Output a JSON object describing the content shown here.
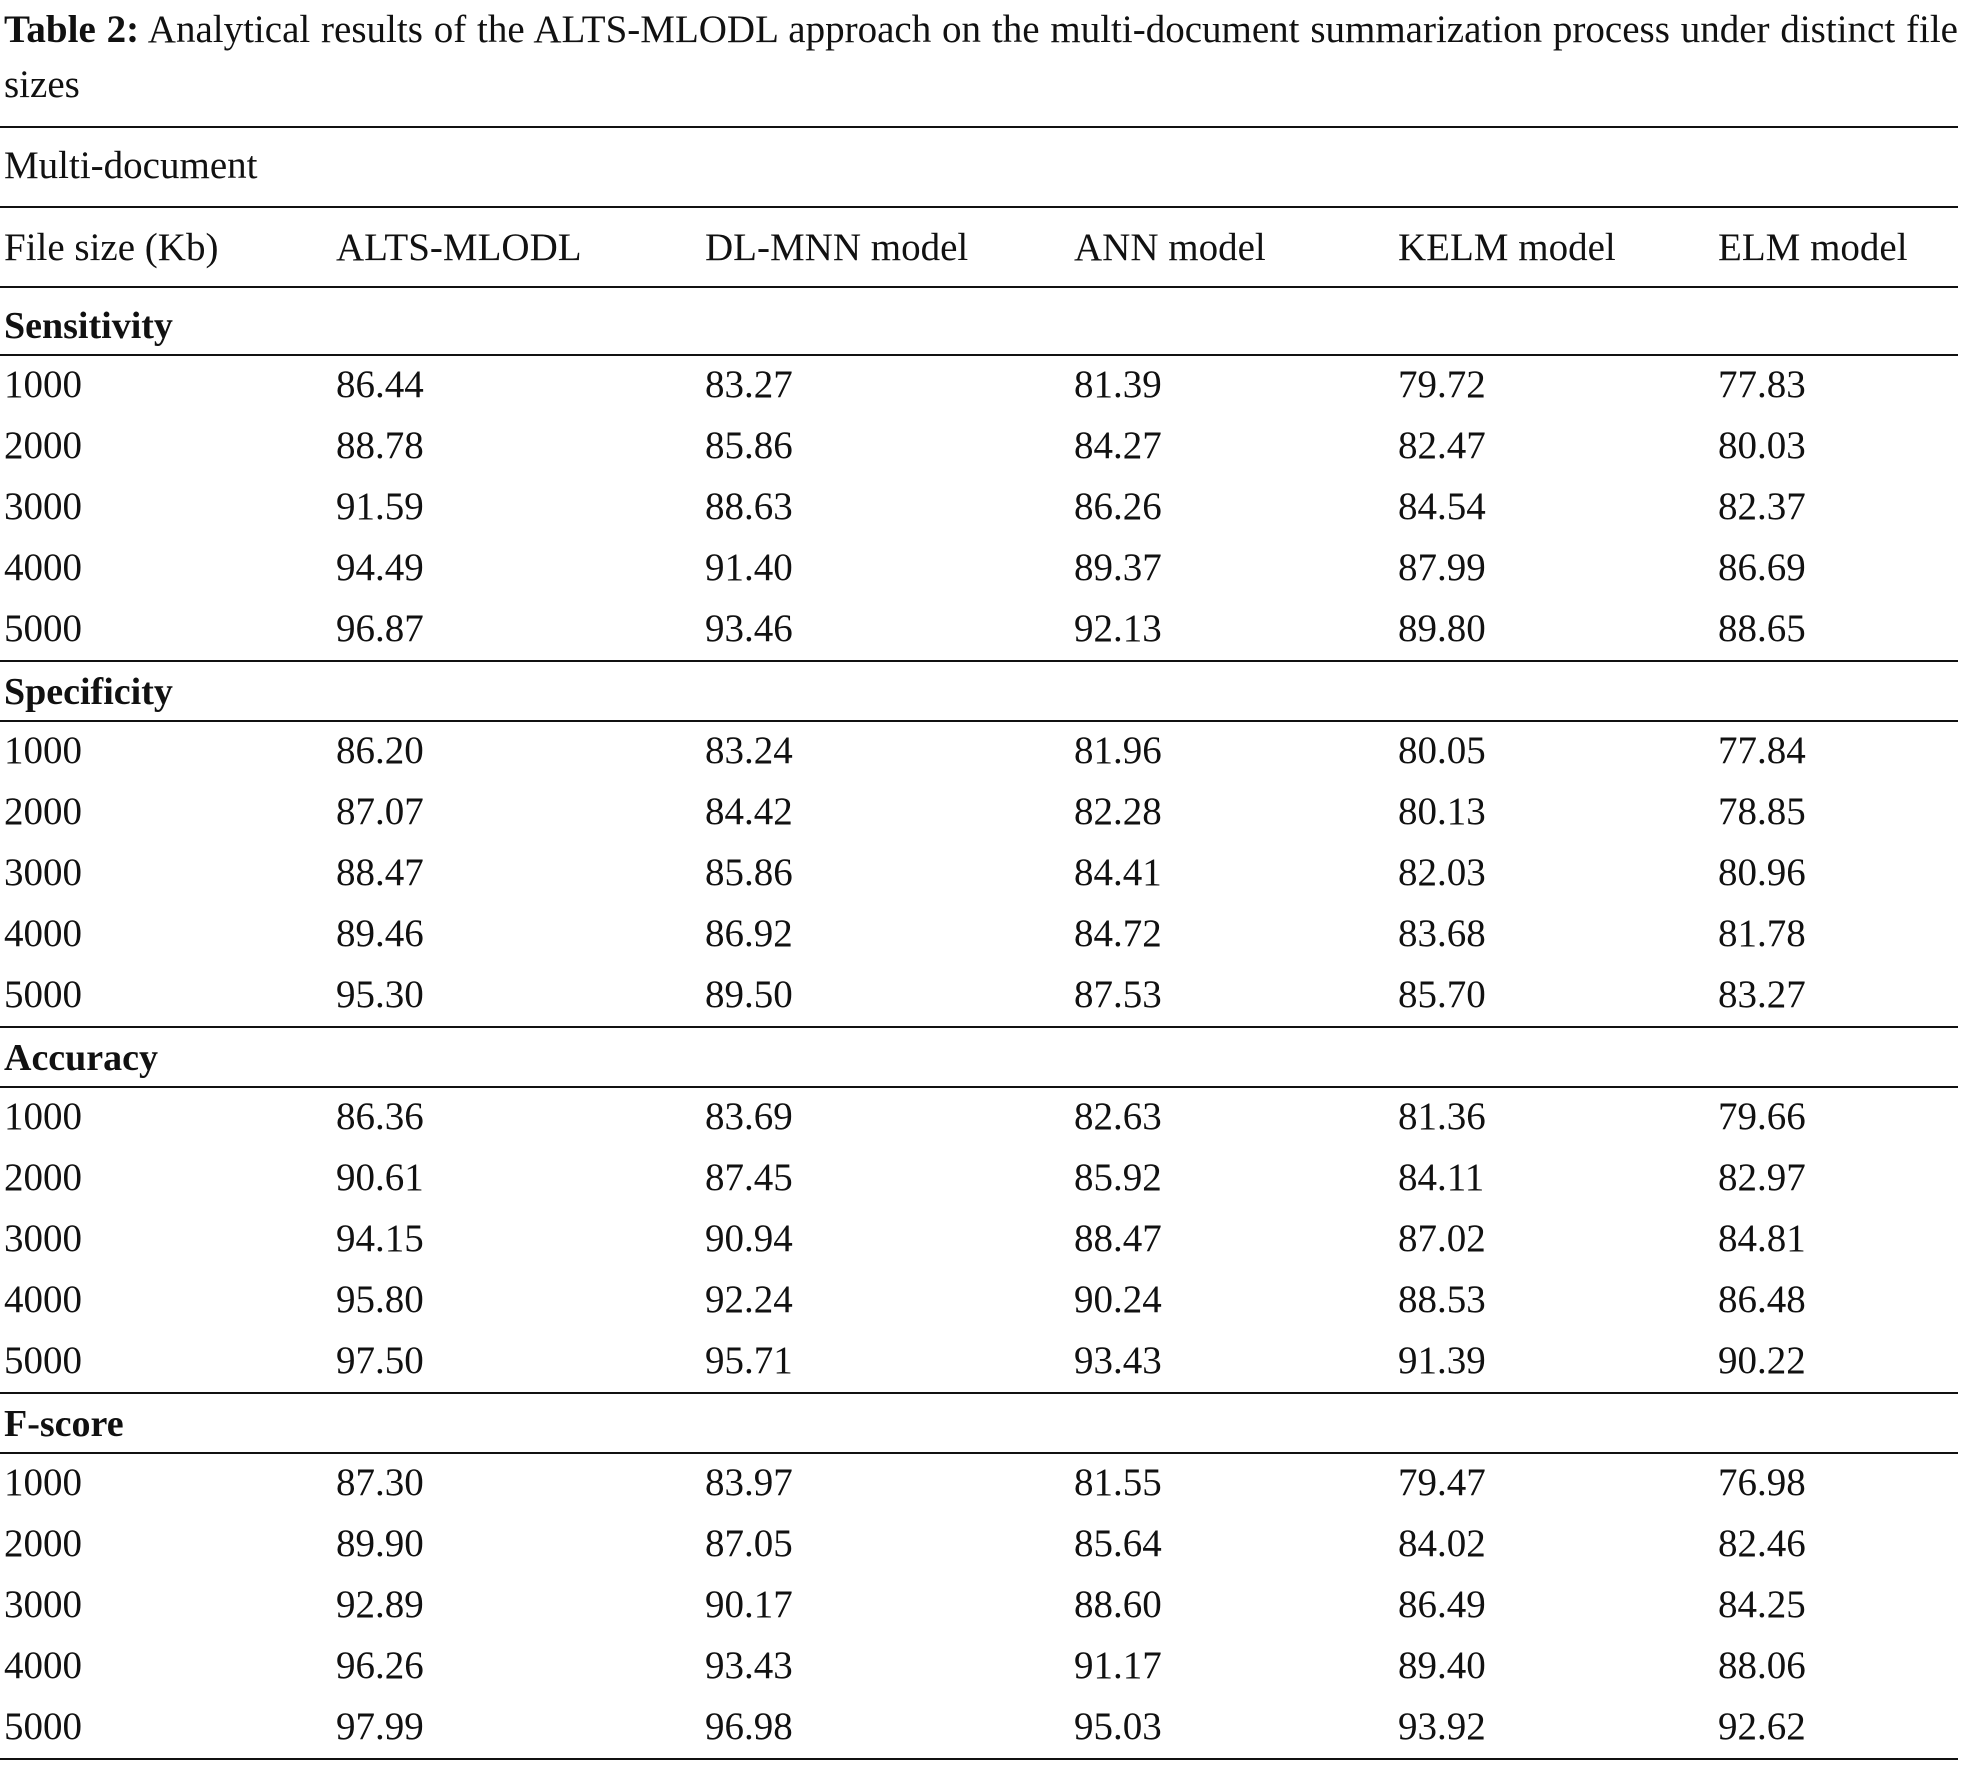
{
  "caption": {
    "label": "Table 2:",
    "text": "Analytical results of the ALTS-MLODL approach on the multi-document summarization process under distinct file sizes"
  },
  "table": {
    "group_header": "Multi-document",
    "columns": [
      "File size (Kb)",
      "ALTS-MLODL",
      "DL-MNN model",
      "ANN model",
      "KELM model",
      "ELM model"
    ],
    "sections": [
      {
        "title": "Sensitivity",
        "rows": [
          [
            "1000",
            "86.44",
            "83.27",
            "81.39",
            "79.72",
            "77.83"
          ],
          [
            "2000",
            "88.78",
            "85.86",
            "84.27",
            "82.47",
            "80.03"
          ],
          [
            "3000",
            "91.59",
            "88.63",
            "86.26",
            "84.54",
            "82.37"
          ],
          [
            "4000",
            "94.49",
            "91.40",
            "89.37",
            "87.99",
            "86.69"
          ],
          [
            "5000",
            "96.87",
            "93.46",
            "92.13",
            "89.80",
            "88.65"
          ]
        ]
      },
      {
        "title": "Specificity",
        "rows": [
          [
            "1000",
            "86.20",
            "83.24",
            "81.96",
            "80.05",
            "77.84"
          ],
          [
            "2000",
            "87.07",
            "84.42",
            "82.28",
            "80.13",
            "78.85"
          ],
          [
            "3000",
            "88.47",
            "85.86",
            "84.41",
            "82.03",
            "80.96"
          ],
          [
            "4000",
            "89.46",
            "86.92",
            "84.72",
            "83.68",
            "81.78"
          ],
          [
            "5000",
            "95.30",
            "89.50",
            "87.53",
            "85.70",
            "83.27"
          ]
        ]
      },
      {
        "title": "Accuracy",
        "rows": [
          [
            "1000",
            "86.36",
            "83.69",
            "82.63",
            "81.36",
            "79.66"
          ],
          [
            "2000",
            "90.61",
            "87.45",
            "85.92",
            "84.11",
            "82.97"
          ],
          [
            "3000",
            "94.15",
            "90.94",
            "88.47",
            "87.02",
            "84.81"
          ],
          [
            "4000",
            "95.80",
            "92.24",
            "90.24",
            "88.53",
            "86.48"
          ],
          [
            "5000",
            "97.50",
            "95.71",
            "93.43",
            "91.39",
            "90.22"
          ]
        ]
      },
      {
        "title": "F-score",
        "rows": [
          [
            "1000",
            "87.30",
            "83.97",
            "81.55",
            "79.47",
            "76.98"
          ],
          [
            "2000",
            "89.90",
            "87.05",
            "85.64",
            "84.02",
            "82.46"
          ],
          [
            "3000",
            "92.89",
            "90.17",
            "88.60",
            "86.49",
            "84.25"
          ],
          [
            "4000",
            "96.26",
            "93.43",
            "91.17",
            "89.40",
            "88.06"
          ],
          [
            "5000",
            "97.99",
            "96.98",
            "95.03",
            "93.92",
            "92.62"
          ]
        ]
      }
    ]
  }
}
